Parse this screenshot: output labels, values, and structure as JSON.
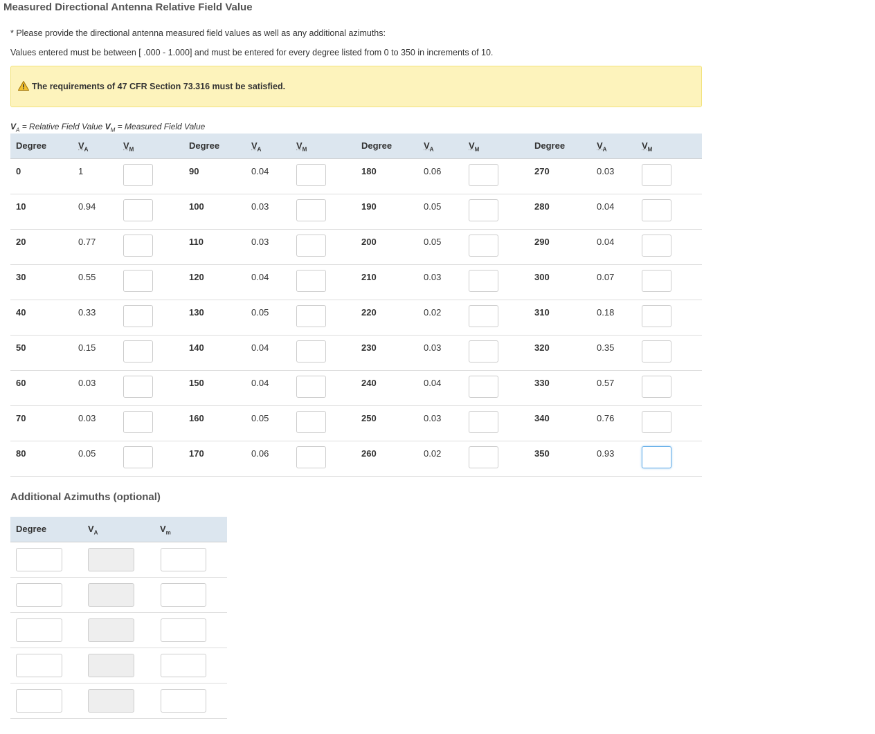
{
  "title": "Measured Directional Antenna Relative Field Value",
  "instructions": [
    "* Please provide the directional antenna measured field values as well as any additional azimuths:",
    "Values entered must be between [ .000 - 1.000] and must be entered for every degree listed from 0 to 350 in increments of 10."
  ],
  "alert": {
    "icon": "warning-triangle-icon",
    "text": "The requirements of 47 CFR Section 73.316 must be satisfied.",
    "bg": "#fdf3bc"
  },
  "legend": {
    "va": "V",
    "va_sub": "A",
    "va_text": " = Relative Field Value ",
    "vm": "V",
    "vm_sub": "M",
    "vm_text": " = Measured Field Value"
  },
  "table": {
    "headers": {
      "degree": "Degree",
      "va": "V",
      "va_sub": "A",
      "vm": "V",
      "vm_sub": "M"
    },
    "groups": [
      [
        {
          "degree": "0",
          "va": "1"
        },
        {
          "degree": "10",
          "va": "0.94"
        },
        {
          "degree": "20",
          "va": "0.77"
        },
        {
          "degree": "30",
          "va": "0.55"
        },
        {
          "degree": "40",
          "va": "0.33"
        },
        {
          "degree": "50",
          "va": "0.15"
        },
        {
          "degree": "60",
          "va": "0.03"
        },
        {
          "degree": "70",
          "va": "0.03"
        },
        {
          "degree": "80",
          "va": "0.05"
        }
      ],
      [
        {
          "degree": "90",
          "va": "0.04"
        },
        {
          "degree": "100",
          "va": "0.03"
        },
        {
          "degree": "110",
          "va": "0.03"
        },
        {
          "degree": "120",
          "va": "0.04"
        },
        {
          "degree": "130",
          "va": "0.05"
        },
        {
          "degree": "140",
          "va": "0.04"
        },
        {
          "degree": "150",
          "va": "0.04"
        },
        {
          "degree": "160",
          "va": "0.05"
        },
        {
          "degree": "170",
          "va": "0.06"
        }
      ],
      [
        {
          "degree": "180",
          "va": "0.06"
        },
        {
          "degree": "190",
          "va": "0.05"
        },
        {
          "degree": "200",
          "va": "0.05"
        },
        {
          "degree": "210",
          "va": "0.03"
        },
        {
          "degree": "220",
          "va": "0.02"
        },
        {
          "degree": "230",
          "va": "0.03"
        },
        {
          "degree": "240",
          "va": "0.04"
        },
        {
          "degree": "250",
          "va": "0.03"
        },
        {
          "degree": "260",
          "va": "0.02"
        }
      ],
      [
        {
          "degree": "270",
          "va": "0.03"
        },
        {
          "degree": "280",
          "va": "0.04"
        },
        {
          "degree": "290",
          "va": "0.04"
        },
        {
          "degree": "300",
          "va": "0.07"
        },
        {
          "degree": "310",
          "va": "0.18"
        },
        {
          "degree": "320",
          "va": "0.35"
        },
        {
          "degree": "330",
          "va": "0.57"
        },
        {
          "degree": "340",
          "va": "0.76"
        },
        {
          "degree": "350",
          "va": "0.93"
        }
      ]
    ],
    "focused_degree": "350"
  },
  "additional": {
    "title": "Additional Azimuths (optional)",
    "headers": {
      "degree": "Degree",
      "va": "V",
      "va_sub": "A",
      "vm": "V",
      "vm_sub": "m"
    },
    "row_count": 5
  }
}
